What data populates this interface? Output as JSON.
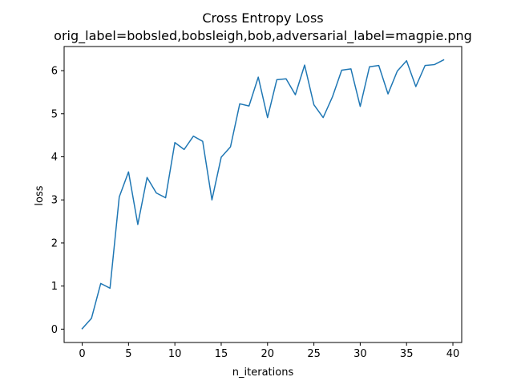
{
  "chart_data": {
    "type": "line",
    "title": "Cross Entropy Loss",
    "subtitle": "orig_label=bobsled,bobsleigh,bob,adversarial_label=magpie.png",
    "xlabel": "n_iterations",
    "ylabel": "loss",
    "xlim": [
      -1.95,
      40.95
    ],
    "ylim": [
      -0.31,
      6.56
    ],
    "xticks": [
      0,
      5,
      10,
      15,
      20,
      25,
      30,
      35,
      40
    ],
    "yticks": [
      0,
      1,
      2,
      3,
      4,
      5,
      6
    ],
    "grid": false,
    "legend": "none",
    "series": [
      {
        "color": "#1f77b4",
        "x": [
          0,
          1,
          2,
          3,
          4,
          5,
          6,
          7,
          8,
          9,
          10,
          11,
          12,
          13,
          14,
          15,
          16,
          17,
          18,
          19,
          20,
          21,
          22,
          23,
          24,
          25,
          26,
          27,
          28,
          29,
          30,
          31,
          32,
          33,
          34,
          35,
          36,
          37,
          38,
          39
        ],
        "values": [
          0.01,
          0.25,
          1.06,
          0.95,
          3.07,
          3.65,
          2.43,
          3.52,
          3.16,
          3.05,
          4.33,
          4.17,
          4.48,
          4.36,
          3.0,
          3.99,
          4.23,
          5.23,
          5.18,
          5.85,
          4.91,
          5.79,
          5.81,
          5.44,
          6.13,
          5.21,
          4.91,
          5.39,
          6.01,
          6.04,
          5.17,
          6.09,
          6.12,
          5.46,
          5.99,
          6.23,
          5.63,
          6.12,
          6.14,
          6.25
        ]
      }
    ]
  }
}
